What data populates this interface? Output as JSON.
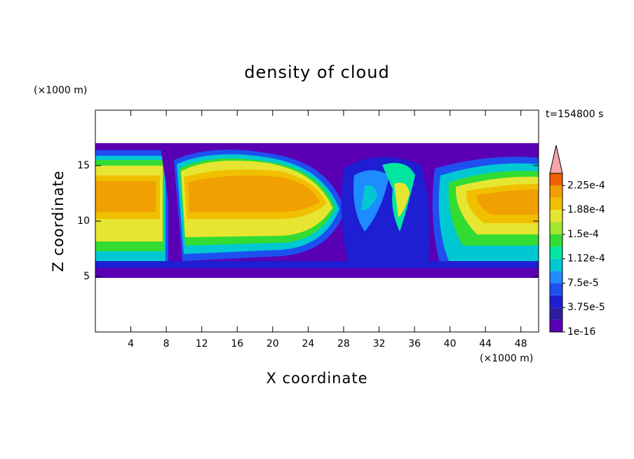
{
  "chart_data": {
    "type": "contour",
    "title": "density of cloud",
    "xlabel": "X coordinate",
    "ylabel": "Z coordinate",
    "x_unit": "(×1000 m)",
    "y_unit": "(×1000 m)",
    "annotation": "t=154800 s",
    "xlim": [
      0,
      50
    ],
    "ylim": [
      0,
      20
    ],
    "xticks": [
      4,
      8,
      12,
      16,
      20,
      24,
      28,
      32,
      36,
      40,
      44,
      48
    ],
    "yticks": [
      5,
      10,
      15
    ],
    "colorbar": {
      "lim": [
        1e-16,
        0.00024375
      ],
      "colors": [
        "#5a00b4",
        "#2d1ea0",
        "#1e1ed2",
        "#1e50f0",
        "#1e8cff",
        "#00c8d2",
        "#00e6a0",
        "#32dc32",
        "#a0e632",
        "#e6e632",
        "#f0c000",
        "#f0a000",
        "#f06000"
      ],
      "extend_color": "#f4a6a6",
      "ticks": [
        {
          "value": 1e-16,
          "label": "1e-16"
        },
        {
          "value": 3.75e-05,
          "label": "3.75e-5"
        },
        {
          "value": 7.5e-05,
          "label": "7.5e-5"
        },
        {
          "value": 0.0001125,
          "label": "1.12e-4"
        },
        {
          "value": 0.00015,
          "label": "1.5e-4"
        },
        {
          "value": 0.0001875,
          "label": "1.88e-4"
        },
        {
          "value": 0.000225,
          "label": "2.25e-4"
        }
      ]
    }
  }
}
